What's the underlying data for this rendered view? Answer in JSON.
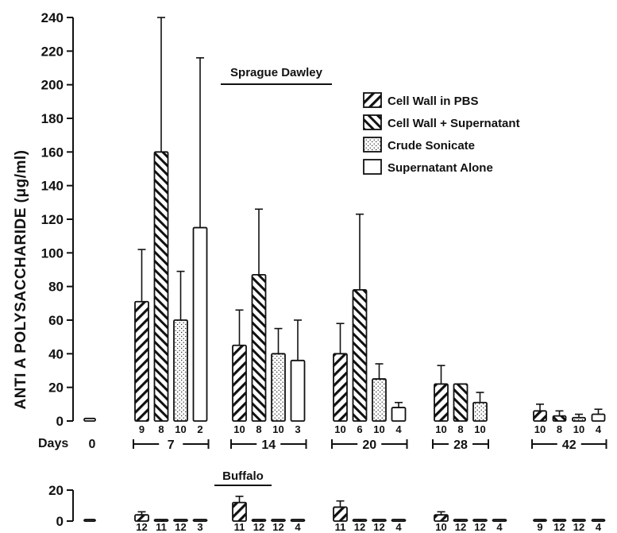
{
  "chart_data": [
    {
      "type": "bar",
      "panel": "Sprague Dawley",
      "title": "Sprague Dawley",
      "ylabel": "ANTI A POLYSACCHARIDE (μg/ml)",
      "xlabel": "Days",
      "ylim": [
        0,
        240
      ],
      "yticks": [
        0,
        20,
        40,
        60,
        80,
        100,
        120,
        140,
        160,
        180,
        200,
        220,
        240
      ],
      "legend_position": "top-right",
      "legend": [
        {
          "key": "cwpbs",
          "label": "Cell Wall in PBS"
        },
        {
          "key": "cwsup",
          "label": "Cell Wall + Supernatant"
        },
        {
          "key": "crude",
          "label": "Crude Sonicate"
        },
        {
          "key": "supalone",
          "label": "Supernatant Alone"
        }
      ],
      "groups": [
        {
          "day": "0",
          "bars": [
            {
              "series": "control",
              "mean": 1.5,
              "n": ""
            }
          ]
        },
        {
          "day": "7",
          "bars": [
            {
              "series": "cwpbs",
              "mean": 71,
              "err": 102,
              "n": "9"
            },
            {
              "series": "cwsup",
              "mean": 160,
              "err": 240,
              "n": "8"
            },
            {
              "series": "crude",
              "mean": 60,
              "err": 89,
              "n": "10"
            },
            {
              "series": "supalone",
              "mean": 115,
              "err": 216,
              "n": "2"
            }
          ]
        },
        {
          "day": "14",
          "bars": [
            {
              "series": "cwpbs",
              "mean": 45,
              "err": 66,
              "n": "10"
            },
            {
              "series": "cwsup",
              "mean": 87,
              "err": 126,
              "n": "8"
            },
            {
              "series": "crude",
              "mean": 40,
              "err": 55,
              "n": "10"
            },
            {
              "series": "supalone",
              "mean": 36,
              "err": 60,
              "n": "3"
            }
          ]
        },
        {
          "day": "20",
          "bars": [
            {
              "series": "cwpbs",
              "mean": 40,
              "err": 58,
              "n": "10"
            },
            {
              "series": "cwsup",
              "mean": 78,
              "err": 123,
              "n": "6"
            },
            {
              "series": "crude",
              "mean": 25,
              "err": 34,
              "n": "10"
            },
            {
              "series": "supalone",
              "mean": 8,
              "err": 11,
              "n": "4"
            }
          ]
        },
        {
          "day": "28",
          "bars": [
            {
              "series": "cwpbs",
              "mean": 22,
              "err": 33,
              "n": "10"
            },
            {
              "series": "cwsup",
              "mean": 22,
              "n": "8"
            },
            {
              "series": "crude",
              "mean": 11,
              "err": 17,
              "n": "10"
            }
          ]
        },
        {
          "day": "42",
          "bars": [
            {
              "series": "cwpbs",
              "mean": 6,
              "err": 10,
              "n": "10"
            },
            {
              "series": "cwsup",
              "mean": 3,
              "err": 6,
              "n": "8"
            },
            {
              "series": "crude",
              "mean": 2,
              "err": 4,
              "n": "10"
            },
            {
              "series": "supalone",
              "mean": 4,
              "err": 7,
              "n": "4"
            }
          ]
        }
      ]
    },
    {
      "type": "bar",
      "panel": "Buffalo",
      "title": "Buffalo",
      "ylim": [
        0,
        20
      ],
      "yticks": [
        0,
        20
      ],
      "groups": [
        {
          "day": "0",
          "bars": [
            {
              "series": "control",
              "mean": 1,
              "n": ""
            }
          ]
        },
        {
          "day": "7",
          "bars": [
            {
              "series": "cwpbs",
              "mean": 4,
              "err": 6,
              "n": "12"
            },
            {
              "series": "cwsup",
              "mean": 1,
              "n": "11"
            },
            {
              "series": "crude",
              "mean": 1,
              "n": "12"
            },
            {
              "series": "supalone",
              "mean": 1,
              "n": "3"
            }
          ]
        },
        {
          "day": "14",
          "bars": [
            {
              "series": "cwpbs",
              "mean": 12,
              "err": 16,
              "n": "11"
            },
            {
              "series": "cwsup",
              "mean": 1,
              "n": "12"
            },
            {
              "series": "crude",
              "mean": 1,
              "n": "12"
            },
            {
              "series": "supalone",
              "mean": 1,
              "n": "4"
            }
          ]
        },
        {
          "day": "20",
          "bars": [
            {
              "series": "cwpbs",
              "mean": 9,
              "err": 13,
              "n": "11"
            },
            {
              "series": "cwsup",
              "mean": 1,
              "n": "12"
            },
            {
              "series": "crude",
              "mean": 1,
              "n": "12"
            },
            {
              "series": "supalone",
              "mean": 1,
              "n": "4"
            }
          ]
        },
        {
          "day": "28",
          "bars": [
            {
              "series": "cwpbs",
              "mean": 4,
              "err": 6,
              "n": "10"
            },
            {
              "series": "cwsup",
              "mean": 1,
              "n": "12"
            },
            {
              "series": "crude",
              "mean": 1,
              "n": "12"
            },
            {
              "series": "supalone",
              "mean": 1,
              "n": "4"
            }
          ]
        },
        {
          "day": "42",
          "bars": [
            {
              "series": "cwpbs",
              "mean": 1,
              "n": "9"
            },
            {
              "series": "cwsup",
              "mean": 1,
              "n": "12"
            },
            {
              "series": "crude",
              "mean": 1,
              "n": "12"
            },
            {
              "series": "supalone",
              "mean": 1,
              "n": "4"
            }
          ]
        }
      ]
    }
  ]
}
